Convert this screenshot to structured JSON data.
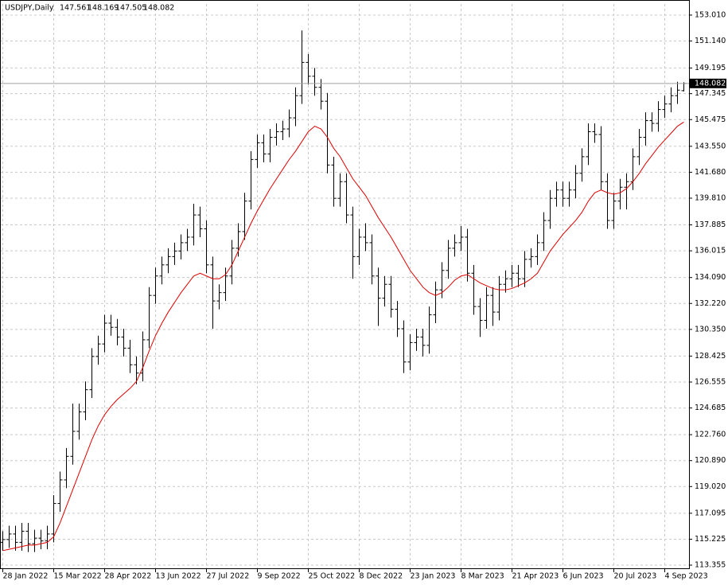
{
  "chart_data": {
    "type": "ohlc",
    "title": "USDJPY,Daily",
    "categories": [
      "28 Jan 2022",
      null,
      null,
      null,
      null,
      null,
      null,
      null,
      "15 Mar 2022",
      null,
      null,
      null,
      null,
      null,
      null,
      null,
      "28 Apr 2022",
      null,
      null,
      null,
      null,
      null,
      null,
      null,
      "13 Jun 2022",
      null,
      null,
      null,
      null,
      null,
      null,
      null,
      "27 Jul 2022",
      null,
      null,
      null,
      null,
      null,
      null,
      null,
      "9 Sep 2022",
      null,
      null,
      null,
      null,
      null,
      null,
      null,
      "25 Oct 2022",
      null,
      null,
      null,
      null,
      null,
      null,
      null,
      "8 Dec 2022",
      null,
      null,
      null,
      null,
      null,
      null,
      null,
      "23 Jan 2023",
      null,
      null,
      null,
      null,
      null,
      null,
      null,
      "8 Mar 2023",
      null,
      null,
      null,
      null,
      null,
      null,
      null,
      "21 Apr 2023",
      null,
      null,
      null,
      null,
      null,
      null,
      null,
      "6 Jun 2023",
      null,
      null,
      null,
      null,
      null,
      null,
      null,
      "20 Jul 2023",
      null,
      null,
      null,
      null,
      null,
      null,
      null,
      "4 Sep 2023",
      null,
      null,
      null
    ],
    "open": [
      115.0,
      115.2,
      115.6,
      115.0,
      115.8,
      114.9,
      115.3,
      115.1,
      115.6,
      117.8,
      119.5,
      121.2,
      123.0,
      124.4,
      126.0,
      128.4,
      129.3,
      130.8,
      130.5,
      129.8,
      129.0,
      127.8,
      127.2,
      129.6,
      132.8,
      134.2,
      135.0,
      135.6,
      136.0,
      136.6,
      137.0,
      138.6,
      137.6,
      135.0,
      132.4,
      133.0,
      134.2,
      136.2,
      137.4,
      139.6,
      142.6,
      143.8,
      143.0,
      144.2,
      144.6,
      144.8,
      145.6,
      147.2,
      149.6,
      148.6,
      147.8,
      146.8,
      142.2,
      139.8,
      141.0,
      138.6,
      135.6,
      137.0,
      136.6,
      134.2,
      132.6,
      133.6,
      131.8,
      130.4,
      128.0,
      129.4,
      129.8,
      129.2,
      131.4,
      133.2,
      134.6,
      136.2,
      136.6,
      137.0,
      134.4,
      132.0,
      131.0,
      132.8,
      131.6,
      133.6,
      134.0,
      134.4,
      134.0,
      135.4,
      135.6,
      136.6,
      138.2,
      139.8,
      140.4,
      139.8,
      140.4,
      141.6,
      142.8,
      144.6,
      144.4,
      141.0,
      138.2,
      139.6,
      140.6,
      141.0,
      142.8,
      144.2,
      145.4,
      145.2,
      146.2,
      146.6,
      147.2,
      147.561
    ],
    "high": [
      115.8,
      116.2,
      116.2,
      116.4,
      116.4,
      115.9,
      115.9,
      116.2,
      118.4,
      120.1,
      121.8,
      125.0,
      125.0,
      126.6,
      129.0,
      129.9,
      131.4,
      131.4,
      131.1,
      130.4,
      129.6,
      128.4,
      130.2,
      133.4,
      134.8,
      135.6,
      136.2,
      136.6,
      137.2,
      137.6,
      139.4,
      139.2,
      138.2,
      135.6,
      133.6,
      134.8,
      136.8,
      138.0,
      140.2,
      143.2,
      144.4,
      144.4,
      144.8,
      145.2,
      145.4,
      146.2,
      147.8,
      151.9,
      150.2,
      149.2,
      148.4,
      147.4,
      142.8,
      141.6,
      141.6,
      139.2,
      137.6,
      138.0,
      137.2,
      134.8,
      134.2,
      134.2,
      132.4,
      131.0,
      130.0,
      130.4,
      130.4,
      132.0,
      133.8,
      135.2,
      136.8,
      137.2,
      137.8,
      137.6,
      135.0,
      132.6,
      133.4,
      133.4,
      134.2,
      134.6,
      135.0,
      135.0,
      136.0,
      136.2,
      137.2,
      138.8,
      140.4,
      141.0,
      141.0,
      141.0,
      142.2,
      143.4,
      145.2,
      145.2,
      145.0,
      141.6,
      140.2,
      141.2,
      141.6,
      143.4,
      144.8,
      146.0,
      146.0,
      146.8,
      147.2,
      147.8,
      148.2,
      148.169
    ],
    "low": [
      114.4,
      114.6,
      114.4,
      114.4,
      114.3,
      114.3,
      114.5,
      114.5,
      115.0,
      117.2,
      118.9,
      120.6,
      122.4,
      123.8,
      125.4,
      127.8,
      128.7,
      129.9,
      129.2,
      128.4,
      127.2,
      126.4,
      126.6,
      129.0,
      132.2,
      133.6,
      134.4,
      135.0,
      135.4,
      136.0,
      136.4,
      137.0,
      134.4,
      130.4,
      131.8,
      132.4,
      133.6,
      135.6,
      136.8,
      139.0,
      142.0,
      142.4,
      142.4,
      143.6,
      144.0,
      144.2,
      145.0,
      146.6,
      148.0,
      147.2,
      146.2,
      141.6,
      139.2,
      139.2,
      138.0,
      134.0,
      135.0,
      136.0,
      133.6,
      130.6,
      132.0,
      131.2,
      129.8,
      127.2,
      127.4,
      128.8,
      128.4,
      128.6,
      130.8,
      132.6,
      134.0,
      135.6,
      136.0,
      133.8,
      131.4,
      129.8,
      130.4,
      130.6,
      131.0,
      133.0,
      133.4,
      133.4,
      133.4,
      134.8,
      135.0,
      136.0,
      137.6,
      139.2,
      139.2,
      139.2,
      139.8,
      141.0,
      142.2,
      143.8,
      140.4,
      137.6,
      137.6,
      139.0,
      139.0,
      140.4,
      142.2,
      143.6,
      144.6,
      144.6,
      145.6,
      146.0,
      146.6,
      147.505
    ],
    "close": [
      115.2,
      115.6,
      115.0,
      115.8,
      114.9,
      115.3,
      115.1,
      115.6,
      117.8,
      119.5,
      121.2,
      123.0,
      124.4,
      126.0,
      128.4,
      129.3,
      130.8,
      130.5,
      129.8,
      129.0,
      127.8,
      127.2,
      129.6,
      132.8,
      134.2,
      135.0,
      135.6,
      136.0,
      136.6,
      137.0,
      138.6,
      137.6,
      135.0,
      132.4,
      133.0,
      134.2,
      136.2,
      137.4,
      139.6,
      142.6,
      143.8,
      143.0,
      144.2,
      144.6,
      144.8,
      145.6,
      147.2,
      149.6,
      148.6,
      147.8,
      146.8,
      142.2,
      139.8,
      141.0,
      138.6,
      135.6,
      137.0,
      136.6,
      134.2,
      132.6,
      133.6,
      131.8,
      130.4,
      128.0,
      129.4,
      129.8,
      129.2,
      131.4,
      133.2,
      134.6,
      136.2,
      136.6,
      137.0,
      134.4,
      132.0,
      131.0,
      132.8,
      131.6,
      133.6,
      134.0,
      134.4,
      134.0,
      135.4,
      135.6,
      136.6,
      138.2,
      139.8,
      140.4,
      139.8,
      140.4,
      141.6,
      142.8,
      144.6,
      144.4,
      141.0,
      138.2,
      139.6,
      140.6,
      141.0,
      142.8,
      144.2,
      145.4,
      145.2,
      146.2,
      146.6,
      147.2,
      147.6,
      148.082
    ],
    "color": "#000000",
    "overlay": {
      "type": "line",
      "color": "#e00000",
      "values": [
        114.4,
        114.5,
        114.6,
        114.7,
        114.8,
        114.8,
        114.9,
        115.0,
        115.4,
        116.4,
        117.6,
        118.8,
        120.0,
        121.2,
        122.4,
        123.4,
        124.2,
        124.8,
        125.3,
        125.7,
        126.1,
        126.6,
        127.6,
        128.8,
        129.9,
        130.8,
        131.6,
        132.3,
        133.0,
        133.6,
        134.2,
        134.4,
        134.2,
        134.0,
        134.0,
        134.3,
        135.0,
        136.0,
        137.0,
        138.0,
        138.9,
        139.7,
        140.5,
        141.2,
        141.9,
        142.6,
        143.2,
        143.9,
        144.6,
        145.0,
        144.8,
        144.2,
        143.4,
        142.8,
        142.0,
        141.2,
        140.6,
        140.0,
        139.2,
        138.4,
        137.7,
        137.0,
        136.2,
        135.4,
        134.6,
        134.0,
        133.4,
        133.0,
        132.8,
        133.0,
        133.4,
        133.9,
        134.2,
        134.3,
        134.0,
        133.7,
        133.5,
        133.3,
        133.2,
        133.2,
        133.3,
        133.5,
        133.7,
        134.0,
        134.4,
        135.2,
        136.0,
        136.6,
        137.2,
        137.7,
        138.2,
        138.8,
        139.6,
        140.2,
        140.4,
        140.2,
        140.1,
        140.2,
        140.5,
        141.0,
        141.6,
        142.3,
        142.9,
        143.5,
        144.0,
        144.5,
        145.0,
        145.3
      ]
    },
    "ylim": [
      113.07,
      153.81
    ],
    "yticks": [
      {
        "value": 113.355,
        "label": "113.355"
      },
      {
        "value": 115.225,
        "label": "115.225"
      },
      {
        "value": 117.095,
        "label": "117.095"
      },
      {
        "value": 119.02,
        "label": "119.020"
      },
      {
        "value": 120.89,
        "label": "120.890"
      },
      {
        "value": 122.76,
        "label": "122.760"
      },
      {
        "value": 124.685,
        "label": "124.685"
      },
      {
        "value": 126.555,
        "label": "126.555"
      },
      {
        "value": 128.425,
        "label": "128.425"
      },
      {
        "value": 130.35,
        "label": "130.350"
      },
      {
        "value": 132.22,
        "label": "132.220"
      },
      {
        "value": 134.09,
        "label": "134.090"
      },
      {
        "value": 136.015,
        "label": "136.015"
      },
      {
        "value": 137.885,
        "label": "137.885"
      },
      {
        "value": 139.81,
        "label": "139.810"
      },
      {
        "value": 141.68,
        "label": "141.680"
      },
      {
        "value": 143.55,
        "label": "143.550"
      },
      {
        "value": 145.475,
        "label": "145.475"
      },
      {
        "value": 147.345,
        "label": "147.345"
      },
      {
        "value": 149.195,
        "label": "149.195"
      },
      {
        "value": 151.14,
        "label": "151.140"
      },
      {
        "value": 153.01,
        "label": "153.010"
      }
    ],
    "grid": true
  }
}
